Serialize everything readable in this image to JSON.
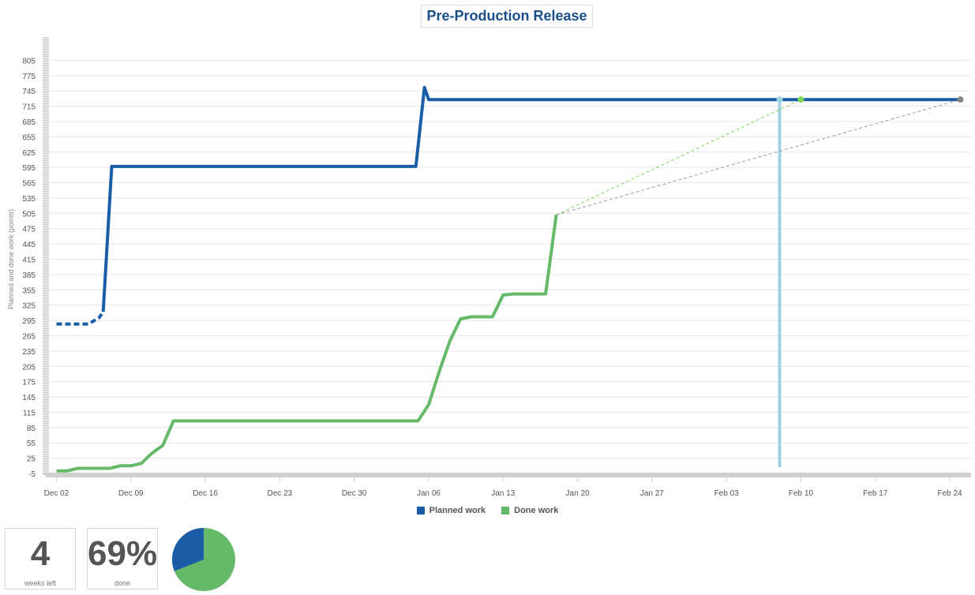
{
  "title": "Pre-Production Release",
  "legend": [
    {
      "label": "Planned work",
      "color": "#1a5da6"
    },
    {
      "label": "Done work",
      "color": "#67b96a"
    }
  ],
  "stats": {
    "weeks_left_value": "4",
    "weeks_left_label": "weeks left",
    "done_value": "69%",
    "done_label": "done"
  },
  "pie": {
    "done_fraction": 0.69,
    "done_color": "#67b96a",
    "remaining_color": "#1a5da6"
  },
  "chart_data": {
    "type": "line",
    "title": "Pre-Production Release",
    "ylabel": "Planned and done work (points)",
    "xlabel": "",
    "x_axis": "dates",
    "xlim": [
      "2018-12-01",
      "2019-02-26"
    ],
    "ylim": [
      -5,
      835
    ],
    "yticks": [
      -5,
      25,
      55,
      85,
      115,
      145,
      175,
      205,
      235,
      265,
      295,
      325,
      355,
      385,
      415,
      445,
      475,
      505,
      535,
      565,
      595,
      625,
      655,
      685,
      715,
      745,
      775,
      805
    ],
    "xticks": [
      {
        "date": "2018-12-02",
        "label": "Dec 02"
      },
      {
        "date": "2018-12-09",
        "label": "Dec 09"
      },
      {
        "date": "2018-12-16",
        "label": "Dec 16"
      },
      {
        "date": "2018-12-23",
        "label": "Dec 23"
      },
      {
        "date": "2018-12-30",
        "label": "Dec 30"
      },
      {
        "date": "2019-01-06",
        "label": "Jan 06"
      },
      {
        "date": "2019-01-13",
        "label": "Jan 13"
      },
      {
        "date": "2019-01-20",
        "label": "Jan 20"
      },
      {
        "date": "2019-01-27",
        "label": "Jan 27"
      },
      {
        "date": "2019-02-03",
        "label": "Feb 03"
      },
      {
        "date": "2019-02-10",
        "label": "Feb 10"
      },
      {
        "date": "2019-02-17",
        "label": "Feb 17"
      },
      {
        "date": "2019-02-24",
        "label": "Feb 24"
      }
    ],
    "grid": true,
    "legend_position": "bottom",
    "series": [
      {
        "name": "Planned work",
        "color": "#1a5da6",
        "dashed_points": [
          [
            "2018-12-02",
            288
          ],
          [
            "2018-12-05",
            288
          ],
          [
            "2018-12-06",
            300
          ],
          [
            "2018-12-06.4",
            312
          ]
        ],
        "points": [
          [
            "2018-12-06.4",
            312
          ],
          [
            "2018-12-07.2",
            597
          ],
          [
            "2019-01-04.8",
            597
          ],
          [
            "2019-01-05.6",
            752
          ],
          [
            "2019-01-06.0",
            728
          ],
          [
            "2019-02-25.0",
            728
          ]
        ]
      },
      {
        "name": "Done work",
        "color": "#67b96a",
        "points": [
          [
            "2018-12-02",
            0
          ],
          [
            "2018-12-03",
            0
          ],
          [
            "2018-12-04",
            5
          ],
          [
            "2018-12-07",
            5
          ],
          [
            "2018-12-08",
            10
          ],
          [
            "2018-12-09",
            10
          ],
          [
            "2018-12-10",
            15
          ],
          [
            "2018-12-11",
            35
          ],
          [
            "2018-12-12",
            50
          ],
          [
            "2018-12-13",
            98
          ],
          [
            "2019-01-05",
            98
          ],
          [
            "2019-01-06",
            130
          ],
          [
            "2019-01-07",
            195
          ],
          [
            "2019-01-08",
            255
          ],
          [
            "2019-01-09",
            298
          ],
          [
            "2019-01-10",
            302
          ],
          [
            "2019-01-12",
            302
          ],
          [
            "2019-01-13",
            345
          ],
          [
            "2019-01-14",
            347
          ],
          [
            "2019-01-17",
            347
          ],
          [
            "2019-01-18",
            502
          ]
        ]
      }
    ],
    "projections": [
      {
        "from": [
          "2019-01-18",
          502
        ],
        "to": [
          "2019-02-10",
          728
        ],
        "color": "#7ed957"
      },
      {
        "from": [
          "2019-01-18",
          502
        ],
        "to": [
          "2019-02-25",
          728
        ],
        "color": "#999999"
      }
    ],
    "markers": [
      {
        "at": [
          "2019-02-08",
          728
        ],
        "color": "#9fd1e3"
      },
      {
        "at": [
          "2019-02-10",
          728
        ],
        "color": "#7ed957"
      },
      {
        "at": [
          "2019-02-25",
          728
        ],
        "color": "#888888"
      }
    ],
    "today_line": {
      "date": "2019-02-08",
      "color": "#9fd1e3"
    }
  }
}
